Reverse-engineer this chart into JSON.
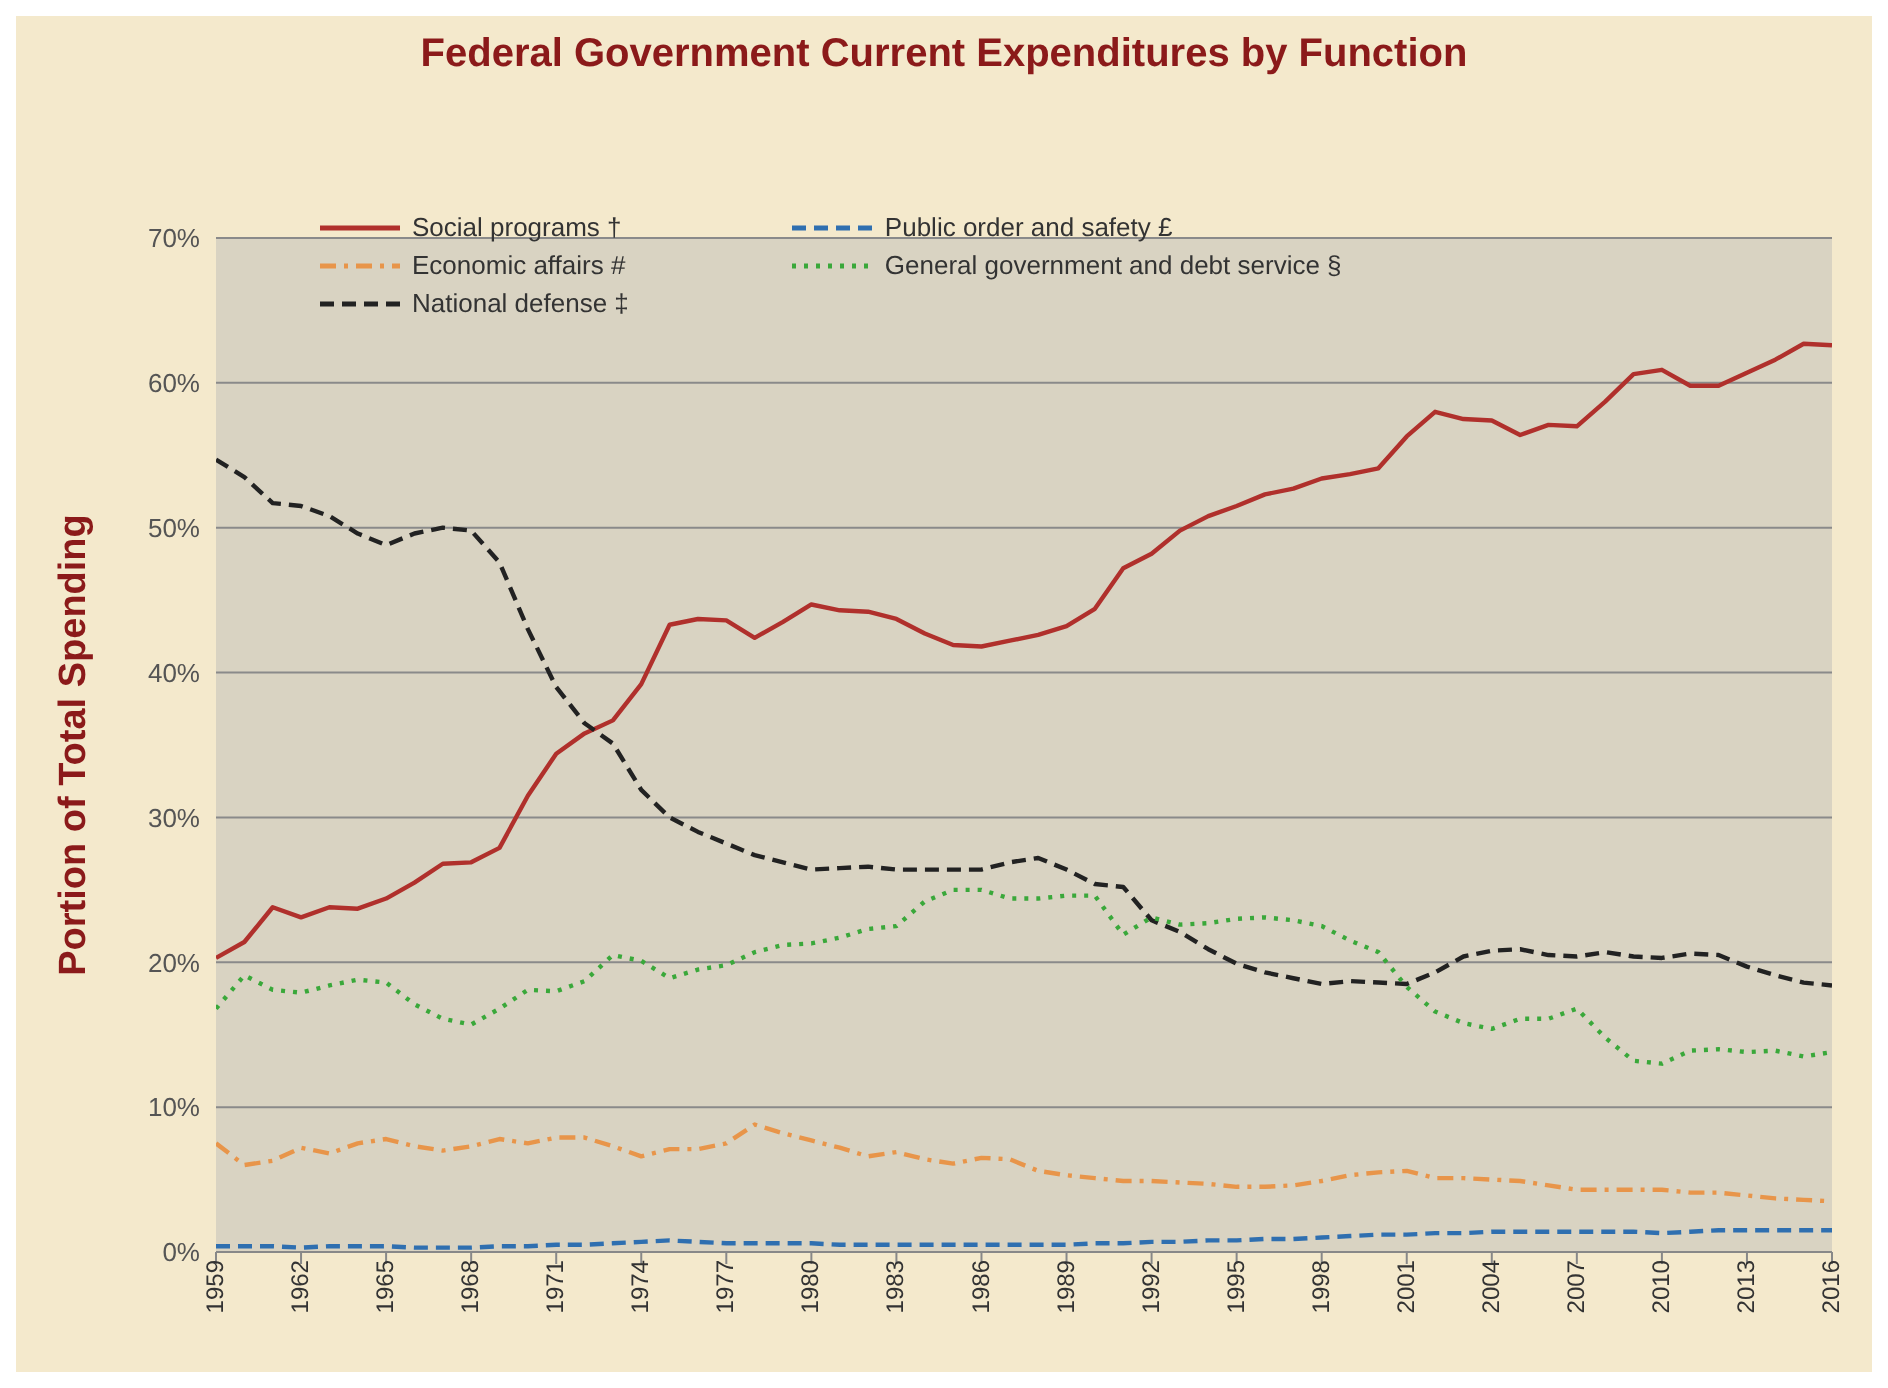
{
  "chart_data": {
    "type": "line",
    "title": "Federal Government Current Expenditures by Function",
    "ylabel": "Portion of Total Spending",
    "x": [
      1959,
      1960,
      1961,
      1962,
      1963,
      1964,
      1965,
      1966,
      1967,
      1968,
      1969,
      1970,
      1971,
      1972,
      1973,
      1974,
      1975,
      1976,
      1977,
      1978,
      1979,
      1980,
      1981,
      1982,
      1983,
      1984,
      1985,
      1986,
      1987,
      1988,
      1989,
      1990,
      1991,
      1992,
      1993,
      1994,
      1995,
      1996,
      1997,
      1998,
      1999,
      2000,
      2001,
      2002,
      2003,
      2004,
      2005,
      2006,
      2007,
      2008,
      2009,
      2010,
      2011,
      2012,
      2013,
      2014,
      2015,
      2016
    ],
    "xlim": [
      1959,
      2016
    ],
    "xticks": [
      1959,
      1962,
      1965,
      1968,
      1971,
      1974,
      1977,
      1980,
      1983,
      1986,
      1989,
      1992,
      1995,
      1998,
      2001,
      2004,
      2007,
      2010,
      2013,
      2016
    ],
    "ylim": [
      0,
      70
    ],
    "yticks": [
      {
        "value": 0,
        "label": "0%"
      },
      {
        "value": 10,
        "label": "10%"
      },
      {
        "value": 20,
        "label": "20%"
      },
      {
        "value": 30,
        "label": "30%"
      },
      {
        "value": 40,
        "label": "40%"
      },
      {
        "value": 50,
        "label": "50%"
      },
      {
        "value": 60,
        "label": "60%"
      },
      {
        "value": 70,
        "label": "70%"
      }
    ],
    "grid": "y",
    "legend": "top",
    "marker": "none",
    "series": [
      {
        "name": "Social programs †",
        "color": "#b0302c",
        "line_style": "solid",
        "values": [
          20.3,
          21.4,
          23.8,
          23.1,
          23.8,
          23.7,
          24.4,
          25.5,
          26.8,
          26.9,
          27.9,
          31.5,
          34.4,
          35.8,
          36.7,
          39.2,
          43.3,
          43.7,
          43.6,
          42.4,
          43.5,
          44.7,
          44.3,
          44.2,
          43.7,
          42.7,
          41.9,
          41.8,
          42.2,
          42.6,
          43.2,
          44.4,
          47.2,
          48.2,
          49.8,
          50.8,
          51.5,
          52.3,
          52.7,
          53.4,
          53.7,
          54.1,
          56.3,
          58.0,
          57.5,
          57.4,
          56.4,
          57.1,
          57.0,
          58.7,
          60.6,
          60.9,
          59.8,
          59.8,
          60.7,
          61.6,
          62.7,
          62.6
        ]
      },
      {
        "name": "Economic affairs #",
        "color": "#e8954a",
        "line_style": "dashdot",
        "values": [
          7.5,
          6.0,
          6.3,
          7.2,
          6.8,
          7.5,
          7.8,
          7.3,
          7.0,
          7.3,
          7.8,
          7.5,
          7.9,
          7.9,
          7.3,
          6.6,
          7.1,
          7.1,
          7.5,
          8.8,
          8.2,
          7.7,
          7.2,
          6.6,
          6.9,
          6.4,
          6.1,
          6.5,
          6.4,
          5.6,
          5.3,
          5.1,
          4.9,
          4.9,
          4.8,
          4.7,
          4.5,
          4.5,
          4.6,
          4.9,
          5.3,
          5.5,
          5.6,
          5.1,
          5.1,
          5.0,
          4.9,
          4.6,
          4.3,
          4.3,
          4.3,
          4.3,
          4.1,
          4.1,
          3.9,
          3.7,
          3.6,
          3.5
        ]
      },
      {
        "name": "National defense ‡",
        "color": "#222222",
        "line_style": "dashed",
        "values": [
          54.7,
          53.5,
          51.7,
          51.5,
          50.8,
          49.6,
          48.8,
          49.6,
          50.0,
          49.8,
          47.6,
          43.0,
          39.0,
          36.5,
          35.1,
          31.9,
          30.0,
          29.0,
          28.2,
          27.4,
          26.9,
          26.4,
          26.5,
          26.6,
          26.4,
          26.4,
          26.4,
          26.4,
          26.9,
          27.2,
          26.4,
          25.4,
          25.2,
          22.9,
          22.1,
          20.9,
          19.9,
          19.3,
          18.9,
          18.5,
          18.7,
          18.6,
          18.5,
          19.3,
          20.4,
          20.8,
          20.9,
          20.5,
          20.4,
          20.7,
          20.4,
          20.3,
          20.6,
          20.5,
          19.7,
          19.1,
          18.6,
          18.4
        ]
      },
      {
        "name": "Public order and safety £",
        "color": "#2f6fb0",
        "line_style": "dashed",
        "values": [
          0.4,
          0.4,
          0.4,
          0.3,
          0.4,
          0.4,
          0.4,
          0.3,
          0.3,
          0.3,
          0.4,
          0.4,
          0.5,
          0.5,
          0.6,
          0.7,
          0.8,
          0.7,
          0.6,
          0.6,
          0.6,
          0.6,
          0.5,
          0.5,
          0.5,
          0.5,
          0.5,
          0.5,
          0.5,
          0.5,
          0.5,
          0.6,
          0.6,
          0.7,
          0.7,
          0.8,
          0.8,
          0.9,
          0.9,
          1.0,
          1.1,
          1.2,
          1.2,
          1.3,
          1.3,
          1.4,
          1.4,
          1.4,
          1.4,
          1.4,
          1.4,
          1.3,
          1.4,
          1.5,
          1.5,
          1.5,
          1.5,
          1.5
        ]
      },
      {
        "name": "General government and debt service §",
        "color": "#3aa83a",
        "line_style": "dotted",
        "values": [
          16.8,
          19.1,
          18.1,
          17.9,
          18.4,
          18.8,
          18.6,
          17.1,
          16.1,
          15.7,
          16.8,
          18.1,
          18.0,
          18.7,
          20.5,
          20.1,
          18.9,
          19.5,
          19.8,
          20.7,
          21.2,
          21.3,
          21.7,
          22.3,
          22.5,
          24.2,
          25.0,
          25.0,
          24.4,
          24.4,
          24.6,
          24.6,
          21.9,
          23.1,
          22.6,
          22.7,
          23.0,
          23.1,
          22.9,
          22.5,
          21.5,
          20.7,
          18.3,
          16.6,
          15.8,
          15.4,
          16.1,
          16.1,
          16.8,
          14.8,
          13.2,
          13.0,
          13.9,
          14.0,
          13.8,
          13.9,
          13.5,
          13.8
        ]
      }
    ]
  }
}
